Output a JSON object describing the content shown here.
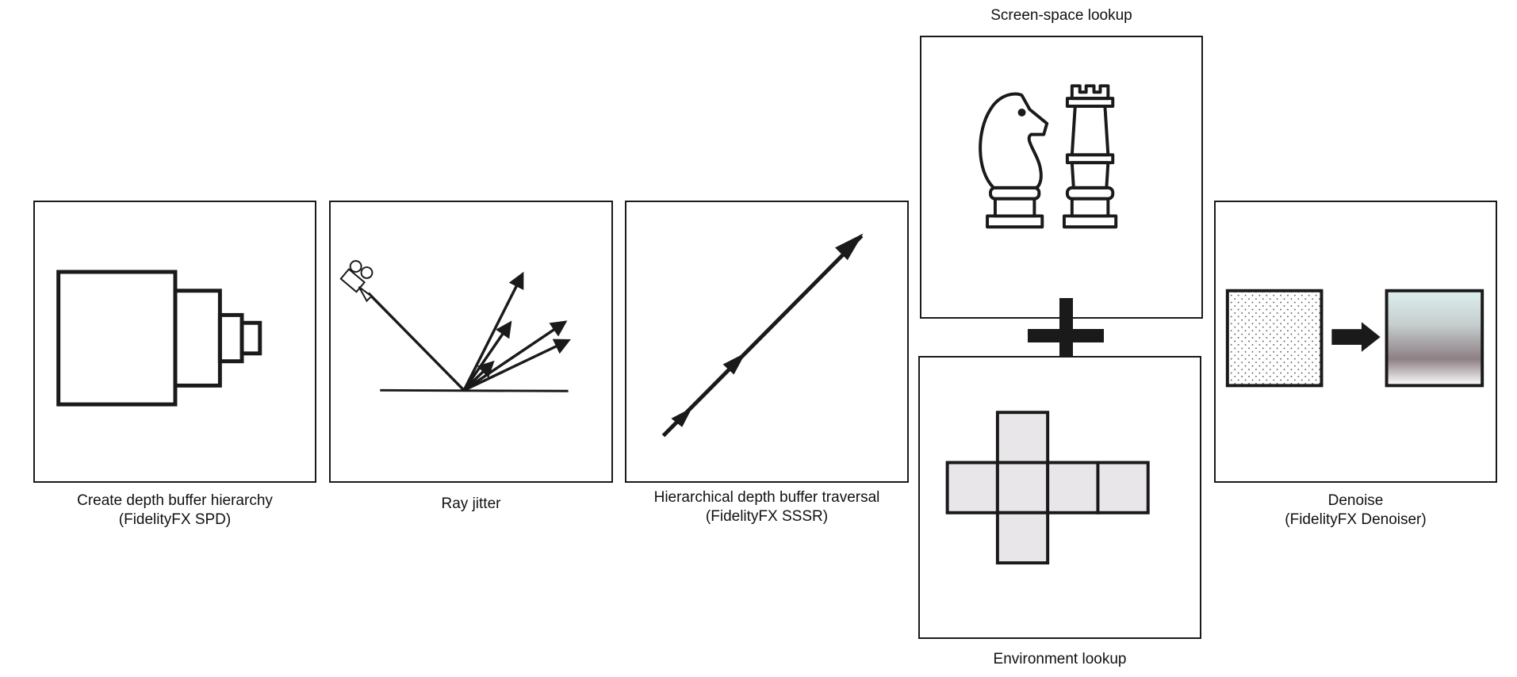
{
  "steps": [
    {
      "id": "spd",
      "line1": "Create depth buffer hierarchy",
      "line2": "(FidelityFX SPD)",
      "icon": "depth-pyramid-icon"
    },
    {
      "id": "jitter",
      "line1": "Ray jitter",
      "line2": "",
      "icon": "camera-reflection-rays-icon"
    },
    {
      "id": "traversal",
      "line1": "Hierarchical depth buffer traversal",
      "line2": "(FidelityFX SSSR)",
      "icon": "ray-march-arrow-icon"
    },
    {
      "id": "screen_space",
      "line1": "Screen-space lookup",
      "icon": "chess-pieces-icon"
    },
    {
      "id": "environment",
      "line1": "Environment lookup",
      "icon": "cube-map-icon"
    },
    {
      "id": "denoise",
      "line1": "Denoise",
      "line2": "(FidelityFX Denoiser)",
      "icon": "noise-to-smooth-icon"
    }
  ],
  "combine_icon": "plus-icon",
  "colors": {
    "stroke": "#1a1a1a",
    "cubemap_fill": "#e8e6e8",
    "denoise_top": "#dcefee",
    "denoise_mid": "#8e7f84",
    "denoise_bottom": "#ffffff"
  }
}
